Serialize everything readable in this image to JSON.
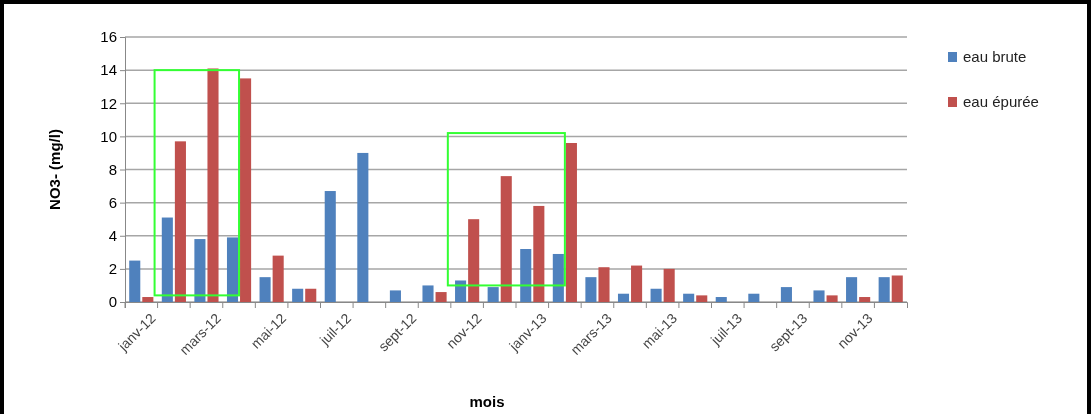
{
  "chart_data": {
    "type": "bar",
    "xlabel": "mois",
    "ylabel": "NO3- (mg/l)",
    "categories": [
      "janv-12",
      null,
      "mars-12",
      null,
      "mai-12",
      null,
      "juil-12",
      null,
      "sept-12",
      null,
      "nov-12",
      null,
      "janv-13",
      null,
      "mars-13",
      null,
      "mai-13",
      null,
      "juil-13",
      null,
      "sept-13",
      null,
      "nov-13",
      null
    ],
    "series": [
      {
        "name": "eau brute",
        "color": "#4f81bd",
        "values": [
          2.5,
          5.1,
          3.8,
          3.9,
          1.5,
          0.8,
          6.7,
          9.0,
          0.7,
          1.0,
          1.3,
          0.9,
          3.2,
          2.9,
          1.5,
          0.5,
          0.8,
          0.5,
          0.3,
          0.5,
          0.9,
          0.7,
          1.5,
          1.5
        ]
      },
      {
        "name": "eau épurée",
        "color": "#c0504d",
        "values": [
          0.3,
          9.7,
          14.1,
          13.5,
          2.8,
          0.8,
          0,
          0,
          0,
          0.6,
          5.0,
          7.6,
          5.8,
          9.6,
          2.1,
          2.2,
          2.0,
          0.4,
          0,
          0,
          0,
          0.4,
          0.3,
          1.6
        ]
      }
    ],
    "ylim": [
      0,
      16
    ],
    "yticks": [
      0,
      2,
      4,
      6,
      8,
      10,
      12,
      14,
      16
    ],
    "grid": "y",
    "legend": "top right"
  }
}
